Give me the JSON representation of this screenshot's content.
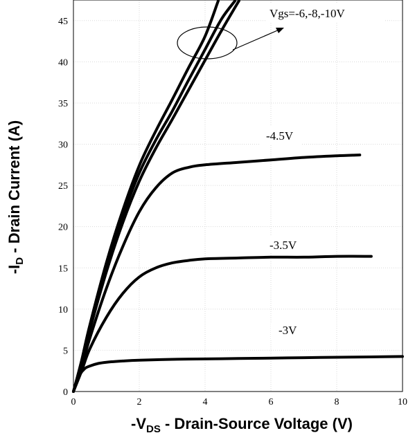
{
  "chart_data": {
    "type": "line",
    "xlabel": "-V_DS - Drain-Source Voltage (V)",
    "xlabel_parts": {
      "pre": "-V",
      "sub": "DS",
      "post": " - Drain-Source Voltage (V)"
    },
    "ylabel": "-I_D - Drain Current (A)",
    "ylabel_parts": {
      "pre": "-I",
      "sub": "D",
      "post": " - Drain Current (A)"
    },
    "xlim": [
      0,
      10
    ],
    "ylim": [
      0,
      47.5
    ],
    "xticks": [
      0,
      2,
      4,
      6,
      8,
      10
    ],
    "yticks": [
      0,
      5,
      10,
      15,
      20,
      25,
      30,
      35,
      40,
      45
    ],
    "grid": true,
    "series": [
      {
        "name": "-6V",
        "x": [
          0,
          0.25,
          0.5,
          1,
          1.5,
          2,
          2.5,
          3,
          3.5,
          4,
          4.5,
          5.03
        ],
        "y": [
          0,
          3.5,
          7.5,
          14.5,
          20.5,
          25.5,
          29.5,
          33,
          36.6,
          40.2,
          43.8,
          47.4
        ]
      },
      {
        "name": "-8V",
        "x": [
          0,
          0.25,
          0.5,
          1,
          1.5,
          2,
          2.5,
          3,
          3.5,
          4,
          4.5,
          4.91
        ],
        "y": [
          0,
          3.6,
          7.8,
          15,
          21.3,
          26.5,
          30.5,
          34,
          37.8,
          41.5,
          45.2,
          47.4
        ]
      },
      {
        "name": "-10V",
        "x": [
          0,
          0.25,
          0.5,
          1,
          1.5,
          2,
          2.5,
          3,
          3.5,
          4,
          4.4
        ],
        "y": [
          0,
          3.8,
          8.1,
          15.6,
          22,
          27.4,
          31.6,
          35.4,
          39.3,
          43.1,
          47.4
        ]
      },
      {
        "name": "-4.5V",
        "x": [
          0,
          0.25,
          0.5,
          1,
          1.5,
          2,
          2.5,
          3,
          3.5,
          4,
          5,
          6,
          7,
          8,
          8.7
        ],
        "y": [
          0,
          3,
          6.5,
          12.5,
          17.6,
          21.8,
          24.7,
          26.5,
          27.2,
          27.5,
          27.8,
          28.1,
          28.4,
          28.6,
          28.7
        ]
      },
      {
        "name": "-3.5V",
        "x": [
          0,
          0.25,
          0.5,
          1,
          1.5,
          2,
          2.5,
          3,
          3.5,
          4,
          5,
          6,
          7,
          8,
          9.05
        ],
        "y": [
          0,
          2.5,
          5.2,
          9,
          11.9,
          13.9,
          15,
          15.6,
          15.9,
          16.1,
          16.2,
          16.3,
          16.3,
          16.4,
          16.4
        ]
      },
      {
        "name": "-3V",
        "x": [
          0,
          0.1,
          0.2,
          0.35,
          0.5,
          0.75,
          1,
          1.5,
          2,
          3,
          4,
          5,
          6,
          7,
          8,
          9,
          10
        ],
        "y": [
          0,
          1.2,
          2.1,
          2.8,
          3.1,
          3.4,
          3.55,
          3.7,
          3.8,
          3.9,
          3.95,
          4,
          4.05,
          4.1,
          4.15,
          4.2,
          4.25
        ]
      }
    ],
    "annotations": [
      {
        "text": "Vgs=-6,-8,-10V"
      },
      {
        "text": "-4.5V"
      },
      {
        "text": "-3.5V"
      },
      {
        "text": "-3V"
      }
    ]
  }
}
